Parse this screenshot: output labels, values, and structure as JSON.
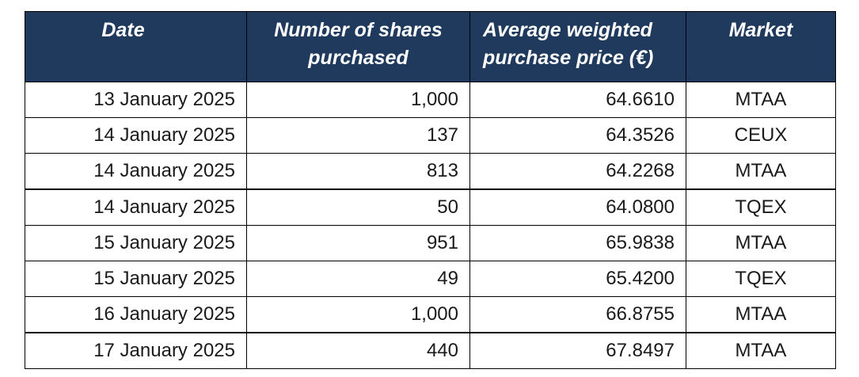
{
  "table": {
    "headers": {
      "date": "Date",
      "shares": "Number of shares purchased",
      "price": "Average weighted purchase price (€)",
      "market": "Market"
    },
    "rows": [
      {
        "date": "13 January 2025",
        "shares": "1,000",
        "price": "64.6610",
        "market": "MTAA"
      },
      {
        "date": "14 January 2025",
        "shares": "137",
        "price": "64.3526",
        "market": "CEUX"
      },
      {
        "date": "14 January 2025",
        "shares": "813",
        "price": "64.2268",
        "market": "MTAA"
      },
      {
        "date": "14 January 2025",
        "shares": "50",
        "price": "64.0800",
        "market": "TQEX"
      },
      {
        "date": "15 January 2025",
        "shares": "951",
        "price": "65.9838",
        "market": "MTAA"
      },
      {
        "date": "15 January 2025",
        "shares": "49",
        "price": "65.4200",
        "market": "TQEX"
      },
      {
        "date": "16 January 2025",
        "shares": "1,000",
        "price": "66.8755",
        "market": "MTAA"
      },
      {
        "date": "17 January 2025",
        "shares": "440",
        "price": "67.8497",
        "market": "MTAA"
      }
    ],
    "header_bg_color": "#1f3a5c",
    "header_text_color": "#ffffff"
  }
}
